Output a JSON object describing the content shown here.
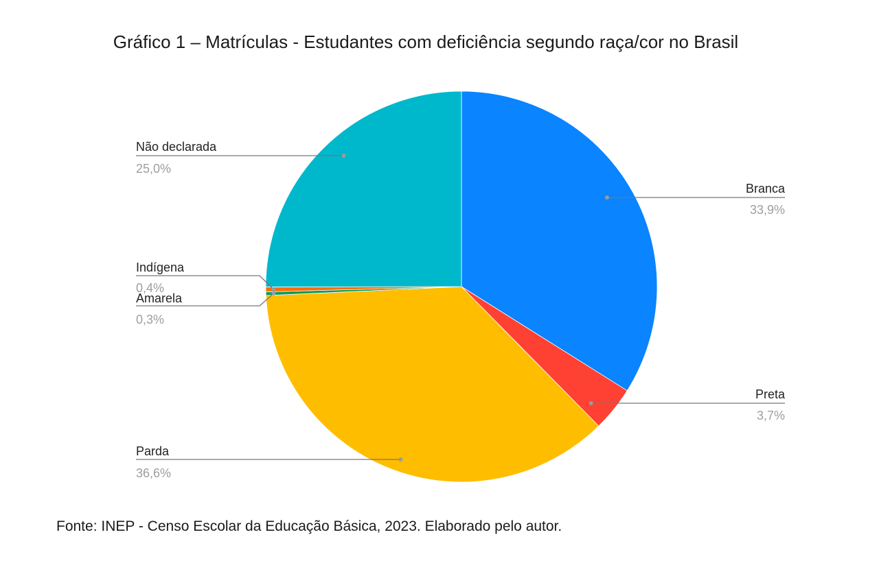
{
  "title": "Gráfico 1 – Matrículas - Estudantes com deficiência segundo raça/cor no Brasil",
  "source": "Fonte: INEP - Censo Escolar da Educação Básica, 2023. Elaborado pelo autor.",
  "chart_data": {
    "type": "pie",
    "slices": [
      {
        "name": "Branca",
        "value": 33.9,
        "label": "33,9%",
        "color": "#0a84ff"
      },
      {
        "name": "Preta",
        "value": 3.7,
        "label": "3,7%",
        "color": "#ff4133"
      },
      {
        "name": "Parda",
        "value": 36.6,
        "label": "36,6%",
        "color": "#ffbd00"
      },
      {
        "name": "Amarela",
        "value": 0.3,
        "label": "0,3%",
        "color": "#0f9d58"
      },
      {
        "name": "Indígena",
        "value": 0.4,
        "label": "0,4%",
        "color": "#ff6d00"
      },
      {
        "name": "Não declarada",
        "value": 25.0,
        "label": "25,0%",
        "color": "#00b8cc"
      }
    ]
  }
}
